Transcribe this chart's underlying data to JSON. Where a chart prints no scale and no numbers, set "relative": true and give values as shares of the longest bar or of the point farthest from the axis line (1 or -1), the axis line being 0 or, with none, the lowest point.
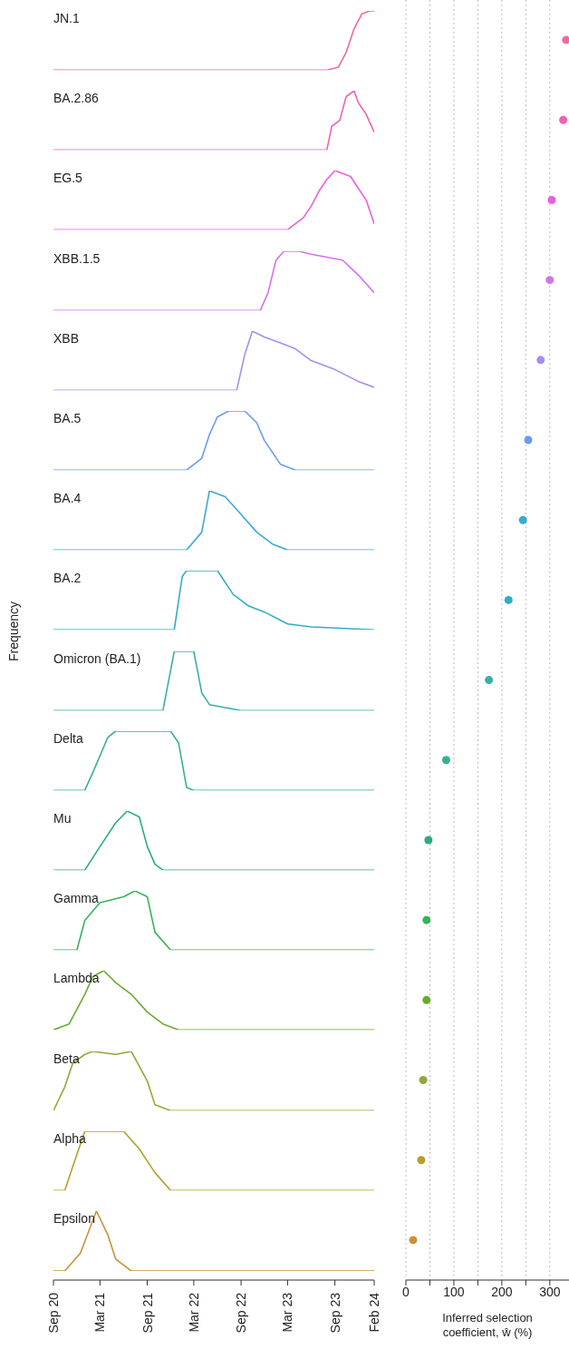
{
  "chart_data": [
    {
      "type": "line",
      "title": "JN.1",
      "relative": true,
      "marker": "none",
      "tick_labels": false,
      "xlim": [
        "2020-09-01",
        "2024-02-01"
      ],
      "x": [
        "2020-09-01",
        "2023-08-01",
        "2023-09-15",
        "2023-10-15",
        "2023-11-15",
        "2023-12-15",
        "2024-01-15",
        "2024-02-01"
      ],
      "series": [
        {
          "color": "#f2689e",
          "values": [
            0,
            0,
            0.05,
            0.3,
            0.7,
            0.95,
            1,
            1
          ]
        }
      ]
    },
    {
      "type": "line",
      "title": "BA.2.86",
      "relative": true,
      "marker": "none",
      "tick_labels": false,
      "xlim": [
        "2020-09-01",
        "2024-02-01"
      ],
      "x": [
        "2020-09-01",
        "2023-08-01",
        "2023-08-20",
        "2023-09-20",
        "2023-10-15",
        "2023-11-15",
        "2023-12-01",
        "2024-01-01",
        "2024-02-01"
      ],
      "series": [
        {
          "color": "#f062b4",
          "values": [
            0,
            0,
            0.4,
            0.5,
            0.9,
            1,
            0.8,
            0.6,
            0.3
          ]
        }
      ]
    },
    {
      "type": "line",
      "title": "EG.5",
      "relative": true,
      "marker": "none",
      "tick_labels": false,
      "xlim": [
        "2020-09-01",
        "2024-02-01"
      ],
      "x": [
        "2020-09-01",
        "2023-03-01",
        "2023-05-01",
        "2023-06-01",
        "2023-07-01",
        "2023-08-01",
        "2023-09-01",
        "2023-10-01",
        "2023-11-01",
        "2023-12-01",
        "2024-01-01",
        "2024-02-01"
      ],
      "series": [
        {
          "color": "#ea60dc",
          "values": [
            0,
            0,
            0.2,
            0.4,
            0.65,
            0.85,
            1,
            0.95,
            0.9,
            0.7,
            0.5,
            0.1
          ]
        }
      ]
    },
    {
      "type": "line",
      "title": "XBB.1.5",
      "relative": true,
      "marker": "none",
      "tick_labels": false,
      "xlim": [
        "2020-09-01",
        "2024-02-01"
      ],
      "x": [
        "2020-09-01",
        "2022-11-15",
        "2022-12-15",
        "2023-01-15",
        "2023-02-15",
        "2023-04-15",
        "2023-06-01",
        "2023-08-01",
        "2023-10-01",
        "2023-12-01",
        "2024-02-01"
      ],
      "series": [
        {
          "color": "#d373ec",
          "values": [
            0,
            0,
            0.3,
            0.85,
            1,
            1,
            0.95,
            0.9,
            0.85,
            0.6,
            0.3
          ]
        }
      ]
    },
    {
      "type": "line",
      "title": "XBB",
      "relative": true,
      "marker": "none",
      "tick_labels": false,
      "xlim": [
        "2020-09-01",
        "2024-02-01"
      ],
      "x": [
        "2020-09-01",
        "2022-08-15",
        "2022-09-15",
        "2022-10-15",
        "2022-12-01",
        "2023-02-01",
        "2023-04-01",
        "2023-06-01",
        "2023-09-01",
        "2023-12-01",
        "2024-02-01"
      ],
      "series": [
        {
          "color": "#aa8cf0",
          "values": [
            0,
            0,
            0.6,
            1,
            0.9,
            0.8,
            0.7,
            0.5,
            0.35,
            0.15,
            0.05
          ]
        }
      ]
    },
    {
      "type": "line",
      "title": "BA.5",
      "relative": true,
      "marker": "none",
      "tick_labels": false,
      "xlim": [
        "2020-09-01",
        "2024-02-01"
      ],
      "x": [
        "2020-09-01",
        "2022-02-01",
        "2022-04-01",
        "2022-05-01",
        "2022-06-01",
        "2022-07-15",
        "2022-09-15",
        "2022-11-01",
        "2022-12-01",
        "2023-01-01",
        "2023-02-01",
        "2023-04-01",
        "2024-02-01"
      ],
      "series": [
        {
          "color": "#6a9bf0",
          "values": [
            0,
            0,
            0.2,
            0.6,
            0.9,
            1,
            1,
            0.8,
            0.5,
            0.3,
            0.1,
            0,
            0
          ]
        }
      ]
    },
    {
      "type": "line",
      "title": "BA.4",
      "relative": true,
      "marker": "none",
      "tick_labels": false,
      "xlim": [
        "2020-09-01",
        "2024-02-01"
      ],
      "x": [
        "2020-09-01",
        "2022-02-01",
        "2022-04-01",
        "2022-05-01",
        "2022-07-01",
        "2022-09-01",
        "2022-11-01",
        "2023-01-01",
        "2023-03-01",
        "2024-02-01"
      ],
      "series": [
        {
          "color": "#38a9db",
          "values": [
            0,
            0,
            0.3,
            1,
            0.9,
            0.6,
            0.3,
            0.1,
            0,
            0
          ]
        }
      ]
    },
    {
      "type": "line",
      "title": "BA.2",
      "ylabel": "Frequency",
      "relative": true,
      "marker": "none",
      "tick_labels": false,
      "xlim": [
        "2020-09-01",
        "2024-02-01"
      ],
      "x": [
        "2020-09-01",
        "2021-12-15",
        "2022-01-15",
        "2022-02-01",
        "2022-06-01",
        "2022-08-01",
        "2022-10-01",
        "2022-12-01",
        "2023-03-01",
        "2023-06-01",
        "2024-02-01"
      ],
      "series": [
        {
          "color": "#33acc3",
          "values": [
            0,
            0,
            0.9,
            1,
            1,
            0.6,
            0.4,
            0.3,
            0.1,
            0.05,
            0
          ]
        }
      ]
    },
    {
      "type": "line",
      "title": "Omicron (BA.1)",
      "relative": true,
      "marker": "none",
      "tick_labels": false,
      "xlim": [
        "2020-09-01",
        "2024-02-01"
      ],
      "x": [
        "2020-09-01",
        "2021-11-01",
        "2021-12-15",
        "2022-03-01",
        "2022-04-01",
        "2022-05-01",
        "2022-07-01",
        "2022-09-01",
        "2024-02-01"
      ],
      "series": [
        {
          "color": "#38b0aa",
          "values": [
            0,
            0,
            1,
            1,
            0.3,
            0.1,
            0.05,
            0,
            0
          ]
        }
      ]
    },
    {
      "type": "line",
      "title": "Delta",
      "relative": true,
      "marker": "none",
      "tick_labels": false,
      "xlim": [
        "2020-09-01",
        "2024-02-01"
      ],
      "x": [
        "2020-09-01",
        "2021-01-01",
        "2021-02-01",
        "2021-04-01",
        "2021-05-01",
        "2021-12-01",
        "2022-01-01",
        "2022-02-01",
        "2022-03-01",
        "2024-02-01"
      ],
      "series": [
        {
          "color": "#37b193",
          "values": [
            0,
            0,
            0.3,
            0.9,
            1,
            1,
            0.8,
            0.05,
            0,
            0
          ]
        }
      ]
    },
    {
      "type": "line",
      "title": "Mu",
      "relative": true,
      "marker": "none",
      "tick_labels": false,
      "xlim": [
        "2020-09-01",
        "2024-02-01"
      ],
      "x": [
        "2020-09-01",
        "2021-01-01",
        "2021-03-01",
        "2021-05-01",
        "2021-06-15",
        "2021-08-01",
        "2021-09-01",
        "2021-10-01",
        "2021-11-01",
        "2024-02-01"
      ],
      "series": [
        {
          "color": "#2eaa80",
          "values": [
            0,
            0,
            0.4,
            0.8,
            1,
            0.9,
            0.4,
            0.1,
            0,
            0
          ]
        }
      ]
    },
    {
      "type": "line",
      "title": "Gamma",
      "relative": true,
      "marker": "none",
      "tick_labels": false,
      "xlim": [
        "2020-09-01",
        "2024-02-01"
      ],
      "x": [
        "2020-09-01",
        "2020-12-01",
        "2021-01-01",
        "2021-03-01",
        "2021-06-01",
        "2021-07-15",
        "2021-09-01",
        "2021-10-01",
        "2021-12-01",
        "2024-02-01"
      ],
      "series": [
        {
          "color": "#37b359",
          "values": [
            0,
            0,
            0.5,
            0.8,
            0.9,
            1,
            0.9,
            0.3,
            0,
            0
          ]
        }
      ]
    },
    {
      "type": "line",
      "title": "Lambda",
      "relative": true,
      "marker": "none",
      "tick_labels": false,
      "xlim": [
        "2020-09-01",
        "2024-02-01"
      ],
      "x": [
        "2020-09-01",
        "2020-11-01",
        "2021-01-01",
        "2021-02-01",
        "2021-03-15",
        "2021-05-01",
        "2021-07-01",
        "2021-09-01",
        "2021-11-01",
        "2022-01-01",
        "2024-02-01"
      ],
      "series": [
        {
          "color": "#6aab2e",
          "values": [
            0,
            0.1,
            0.6,
            0.9,
            1,
            0.8,
            0.6,
            0.3,
            0.1,
            0,
            0
          ]
        }
      ]
    },
    {
      "type": "line",
      "title": "Beta",
      "relative": true,
      "marker": "none",
      "tick_labels": false,
      "xlim": [
        "2020-09-01",
        "2024-02-01"
      ],
      "x": [
        "2020-09-01",
        "2020-10-15",
        "2020-11-15",
        "2021-01-01",
        "2021-02-01",
        "2021-05-01",
        "2021-07-01",
        "2021-09-01",
        "2021-10-01",
        "2021-12-01",
        "2024-02-01"
      ],
      "series": [
        {
          "color": "#95a73a",
          "values": [
            0,
            0.4,
            0.8,
            0.95,
            1,
            0.95,
            1,
            0.5,
            0.1,
            0,
            0
          ]
        }
      ]
    },
    {
      "type": "line",
      "title": "Alpha",
      "relative": true,
      "marker": "none",
      "tick_labels": false,
      "xlim": [
        "2020-09-01",
        "2024-02-01"
      ],
      "x": [
        "2020-09-01",
        "2020-10-15",
        "2020-11-15",
        "2021-01-01",
        "2021-06-01",
        "2021-08-01",
        "2021-10-01",
        "2021-12-01",
        "2024-02-01"
      ],
      "series": [
        {
          "color": "#b2a02a",
          "values": [
            0,
            0,
            0.4,
            1,
            1,
            0.7,
            0.3,
            0,
            0
          ]
        }
      ]
    },
    {
      "type": "line",
      "title": "Epsilon",
      "relative": true,
      "marker": "none",
      "tick_labels": "x",
      "xlim": [
        "2020-09-01",
        "2024-02-01"
      ],
      "xticks": [
        {
          "value": "2020-09-01",
          "label": "Sep 20"
        },
        {
          "value": "2021-03-01",
          "label": "Mar 21"
        },
        {
          "value": "2021-09-01",
          "label": "Sep 21"
        },
        {
          "value": "2022-03-01",
          "label": "Mar 22"
        },
        {
          "value": "2022-09-01",
          "label": "Sep 22"
        },
        {
          "value": "2023-03-01",
          "label": "Mar 23"
        },
        {
          "value": "2023-09-01",
          "label": "Sep 23"
        },
        {
          "value": "2024-02-01",
          "label": "Feb 24"
        }
      ],
      "x": [
        "2020-09-01",
        "2020-10-15",
        "2020-12-15",
        "2021-02-15",
        "2021-04-01",
        "2021-05-01",
        "2021-07-01",
        "2024-02-01"
      ],
      "series": [
        {
          "color": "#c9923a",
          "values": [
            0,
            0,
            0.3,
            1,
            0.6,
            0.2,
            0,
            0
          ]
        }
      ]
    },
    {
      "type": "scatter",
      "orientation": "horizontal",
      "marker": "circle",
      "grid": "x",
      "xlabel": "Inferred selection coefficient, ŵ (%)",
      "categories": [
        null,
        null,
        null,
        null,
        null,
        null,
        null,
        null,
        null,
        null,
        null,
        null,
        null,
        null,
        null,
        null
      ],
      "xlim": [
        0,
        340
      ],
      "xticks": [
        0,
        {
          "value": 50,
          "label": null
        },
        100,
        {
          "value": 150,
          "label": null
        },
        200,
        {
          "value": 250,
          "label": null
        },
        300
      ],
      "values": [
        334,
        328,
        304,
        300,
        281,
        255,
        244,
        214,
        173,
        84,
        47,
        43,
        43,
        36,
        32,
        15
      ],
      "colors": [
        "#f2689e",
        "#f062b4",
        "#ea60dc",
        "#d373ec",
        "#aa8cf0",
        "#6a9bf0",
        "#38a9db",
        "#33acc3",
        "#38b0aa",
        "#37b193",
        "#2eaa80",
        "#37b359",
        "#6aab2e",
        "#95a73a",
        "#b2a02a",
        "#c9923a"
      ]
    }
  ]
}
